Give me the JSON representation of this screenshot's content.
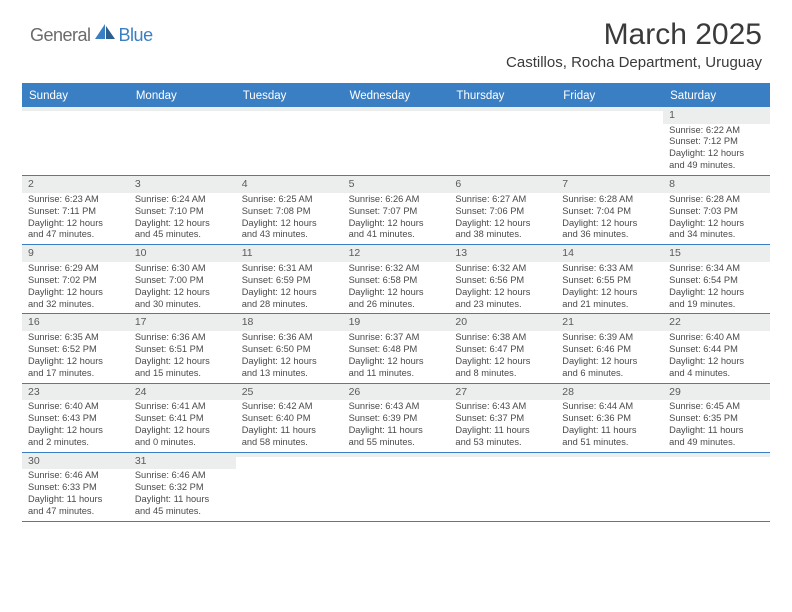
{
  "logo": {
    "text1": "General",
    "text2": "Blue"
  },
  "title": "March 2025",
  "location": "Castillos, Rocha Department, Uruguay",
  "colors": {
    "accent": "#3a7fc4",
    "header_bg": "#3a7fc4",
    "header_text": "#ffffff",
    "daynum_bg": "#eceded",
    "body_text": "#4a4a4a",
    "title_text": "#3a3a3a",
    "logo_gray": "#6b6b6b"
  },
  "day_headers": [
    "Sunday",
    "Monday",
    "Tuesday",
    "Wednesday",
    "Thursday",
    "Friday",
    "Saturday"
  ],
  "weeks": [
    [
      {
        "n": "",
        "sr": "",
        "ss": "",
        "d1": "",
        "d2": ""
      },
      {
        "n": "",
        "sr": "",
        "ss": "",
        "d1": "",
        "d2": ""
      },
      {
        "n": "",
        "sr": "",
        "ss": "",
        "d1": "",
        "d2": ""
      },
      {
        "n": "",
        "sr": "",
        "ss": "",
        "d1": "",
        "d2": ""
      },
      {
        "n": "",
        "sr": "",
        "ss": "",
        "d1": "",
        "d2": ""
      },
      {
        "n": "",
        "sr": "",
        "ss": "",
        "d1": "",
        "d2": ""
      },
      {
        "n": "1",
        "sr": "Sunrise: 6:22 AM",
        "ss": "Sunset: 7:12 PM",
        "d1": "Daylight: 12 hours",
        "d2": "and 49 minutes."
      }
    ],
    [
      {
        "n": "2",
        "sr": "Sunrise: 6:23 AM",
        "ss": "Sunset: 7:11 PM",
        "d1": "Daylight: 12 hours",
        "d2": "and 47 minutes."
      },
      {
        "n": "3",
        "sr": "Sunrise: 6:24 AM",
        "ss": "Sunset: 7:10 PM",
        "d1": "Daylight: 12 hours",
        "d2": "and 45 minutes."
      },
      {
        "n": "4",
        "sr": "Sunrise: 6:25 AM",
        "ss": "Sunset: 7:08 PM",
        "d1": "Daylight: 12 hours",
        "d2": "and 43 minutes."
      },
      {
        "n": "5",
        "sr": "Sunrise: 6:26 AM",
        "ss": "Sunset: 7:07 PM",
        "d1": "Daylight: 12 hours",
        "d2": "and 41 minutes."
      },
      {
        "n": "6",
        "sr": "Sunrise: 6:27 AM",
        "ss": "Sunset: 7:06 PM",
        "d1": "Daylight: 12 hours",
        "d2": "and 38 minutes."
      },
      {
        "n": "7",
        "sr": "Sunrise: 6:28 AM",
        "ss": "Sunset: 7:04 PM",
        "d1": "Daylight: 12 hours",
        "d2": "and 36 minutes."
      },
      {
        "n": "8",
        "sr": "Sunrise: 6:28 AM",
        "ss": "Sunset: 7:03 PM",
        "d1": "Daylight: 12 hours",
        "d2": "and 34 minutes."
      }
    ],
    [
      {
        "n": "9",
        "sr": "Sunrise: 6:29 AM",
        "ss": "Sunset: 7:02 PM",
        "d1": "Daylight: 12 hours",
        "d2": "and 32 minutes."
      },
      {
        "n": "10",
        "sr": "Sunrise: 6:30 AM",
        "ss": "Sunset: 7:00 PM",
        "d1": "Daylight: 12 hours",
        "d2": "and 30 minutes."
      },
      {
        "n": "11",
        "sr": "Sunrise: 6:31 AM",
        "ss": "Sunset: 6:59 PM",
        "d1": "Daylight: 12 hours",
        "d2": "and 28 minutes."
      },
      {
        "n": "12",
        "sr": "Sunrise: 6:32 AM",
        "ss": "Sunset: 6:58 PM",
        "d1": "Daylight: 12 hours",
        "d2": "and 26 minutes."
      },
      {
        "n": "13",
        "sr": "Sunrise: 6:32 AM",
        "ss": "Sunset: 6:56 PM",
        "d1": "Daylight: 12 hours",
        "d2": "and 23 minutes."
      },
      {
        "n": "14",
        "sr": "Sunrise: 6:33 AM",
        "ss": "Sunset: 6:55 PM",
        "d1": "Daylight: 12 hours",
        "d2": "and 21 minutes."
      },
      {
        "n": "15",
        "sr": "Sunrise: 6:34 AM",
        "ss": "Sunset: 6:54 PM",
        "d1": "Daylight: 12 hours",
        "d2": "and 19 minutes."
      }
    ],
    [
      {
        "n": "16",
        "sr": "Sunrise: 6:35 AM",
        "ss": "Sunset: 6:52 PM",
        "d1": "Daylight: 12 hours",
        "d2": "and 17 minutes."
      },
      {
        "n": "17",
        "sr": "Sunrise: 6:36 AM",
        "ss": "Sunset: 6:51 PM",
        "d1": "Daylight: 12 hours",
        "d2": "and 15 minutes."
      },
      {
        "n": "18",
        "sr": "Sunrise: 6:36 AM",
        "ss": "Sunset: 6:50 PM",
        "d1": "Daylight: 12 hours",
        "d2": "and 13 minutes."
      },
      {
        "n": "19",
        "sr": "Sunrise: 6:37 AM",
        "ss": "Sunset: 6:48 PM",
        "d1": "Daylight: 12 hours",
        "d2": "and 11 minutes."
      },
      {
        "n": "20",
        "sr": "Sunrise: 6:38 AM",
        "ss": "Sunset: 6:47 PM",
        "d1": "Daylight: 12 hours",
        "d2": "and 8 minutes."
      },
      {
        "n": "21",
        "sr": "Sunrise: 6:39 AM",
        "ss": "Sunset: 6:46 PM",
        "d1": "Daylight: 12 hours",
        "d2": "and 6 minutes."
      },
      {
        "n": "22",
        "sr": "Sunrise: 6:40 AM",
        "ss": "Sunset: 6:44 PM",
        "d1": "Daylight: 12 hours",
        "d2": "and 4 minutes."
      }
    ],
    [
      {
        "n": "23",
        "sr": "Sunrise: 6:40 AM",
        "ss": "Sunset: 6:43 PM",
        "d1": "Daylight: 12 hours",
        "d2": "and 2 minutes."
      },
      {
        "n": "24",
        "sr": "Sunrise: 6:41 AM",
        "ss": "Sunset: 6:41 PM",
        "d1": "Daylight: 12 hours",
        "d2": "and 0 minutes."
      },
      {
        "n": "25",
        "sr": "Sunrise: 6:42 AM",
        "ss": "Sunset: 6:40 PM",
        "d1": "Daylight: 11 hours",
        "d2": "and 58 minutes."
      },
      {
        "n": "26",
        "sr": "Sunrise: 6:43 AM",
        "ss": "Sunset: 6:39 PM",
        "d1": "Daylight: 11 hours",
        "d2": "and 55 minutes."
      },
      {
        "n": "27",
        "sr": "Sunrise: 6:43 AM",
        "ss": "Sunset: 6:37 PM",
        "d1": "Daylight: 11 hours",
        "d2": "and 53 minutes."
      },
      {
        "n": "28",
        "sr": "Sunrise: 6:44 AM",
        "ss": "Sunset: 6:36 PM",
        "d1": "Daylight: 11 hours",
        "d2": "and 51 minutes."
      },
      {
        "n": "29",
        "sr": "Sunrise: 6:45 AM",
        "ss": "Sunset: 6:35 PM",
        "d1": "Daylight: 11 hours",
        "d2": "and 49 minutes."
      }
    ],
    [
      {
        "n": "30",
        "sr": "Sunrise: 6:46 AM",
        "ss": "Sunset: 6:33 PM",
        "d1": "Daylight: 11 hours",
        "d2": "and 47 minutes."
      },
      {
        "n": "31",
        "sr": "Sunrise: 6:46 AM",
        "ss": "Sunset: 6:32 PM",
        "d1": "Daylight: 11 hours",
        "d2": "and 45 minutes."
      },
      {
        "n": "",
        "sr": "",
        "ss": "",
        "d1": "",
        "d2": ""
      },
      {
        "n": "",
        "sr": "",
        "ss": "",
        "d1": "",
        "d2": ""
      },
      {
        "n": "",
        "sr": "",
        "ss": "",
        "d1": "",
        "d2": ""
      },
      {
        "n": "",
        "sr": "",
        "ss": "",
        "d1": "",
        "d2": ""
      },
      {
        "n": "",
        "sr": "",
        "ss": "",
        "d1": "",
        "d2": ""
      }
    ]
  ]
}
